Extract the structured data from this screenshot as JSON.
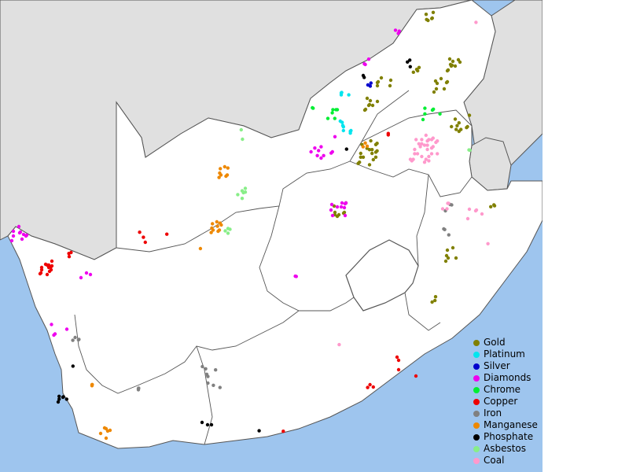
{
  "legend": {
    "items": [
      {
        "label": "Gold",
        "color": "#808000"
      },
      {
        "label": "Platinum",
        "color": "#00e5ee"
      },
      {
        "label": "Silver",
        "color": "#0000cc"
      },
      {
        "label": "Diamonds",
        "color": "#ee00ee"
      },
      {
        "label": "Chrome",
        "color": "#00ee33"
      },
      {
        "label": "Copper",
        "color": "#ee0000"
      },
      {
        "label": "Iron",
        "color": "#808080"
      },
      {
        "label": "Manganese",
        "color": "#ee8800"
      },
      {
        "label": "Phosphate",
        "color": "#000000"
      },
      {
        "label": "Asbestos",
        "color": "#88ee88"
      },
      {
        "label": "Coal",
        "color": "#ff99cc"
      }
    ]
  },
  "colors": {
    "sea": "#9ec5ee",
    "neighbor_land": "#e0e0e0",
    "country": "#ffffff",
    "border": "#555555"
  }
}
